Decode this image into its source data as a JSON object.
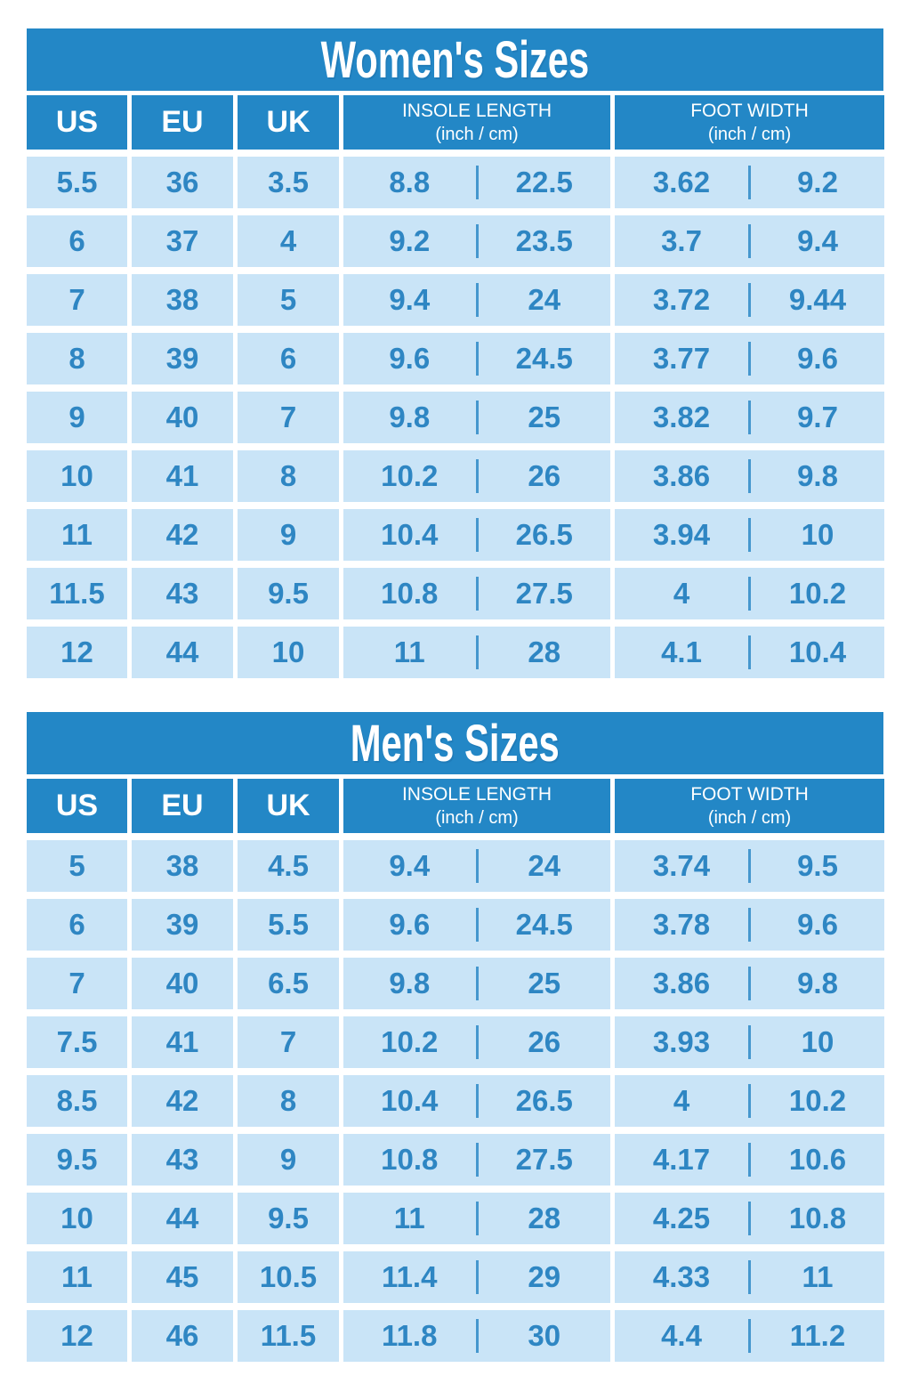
{
  "colors": {
    "banner_blue": "#2387c6",
    "cell_light_blue": "#c9e4f7",
    "cell_text_blue": "#2e86c3",
    "divider_blue": "#4597ce",
    "header_text": "#ffffff",
    "background": "#ffffff"
  },
  "tables": [
    {
      "title": "Women's Sizes",
      "headers": {
        "us": "US",
        "eu": "EU",
        "uk": "UK",
        "insole_title": "INSOLE LENGTH",
        "insole_sub": "(inch / cm)",
        "foot_title": "FOOT WIDTH",
        "foot_sub": "(inch / cm)"
      },
      "rows": [
        {
          "us": "5.5",
          "eu": "36",
          "uk": "3.5",
          "insole_in": "8.8",
          "insole_cm": "22.5",
          "foot_in": "3.62",
          "foot_cm": "9.2"
        },
        {
          "us": "6",
          "eu": "37",
          "uk": "4",
          "insole_in": "9.2",
          "insole_cm": "23.5",
          "foot_in": "3.7",
          "foot_cm": "9.4"
        },
        {
          "us": "7",
          "eu": "38",
          "uk": "5",
          "insole_in": "9.4",
          "insole_cm": "24",
          "foot_in": "3.72",
          "foot_cm": "9.44"
        },
        {
          "us": "8",
          "eu": "39",
          "uk": "6",
          "insole_in": "9.6",
          "insole_cm": "24.5",
          "foot_in": "3.77",
          "foot_cm": "9.6"
        },
        {
          "us": "9",
          "eu": "40",
          "uk": "7",
          "insole_in": "9.8",
          "insole_cm": "25",
          "foot_in": "3.82",
          "foot_cm": "9.7"
        },
        {
          "us": "10",
          "eu": "41",
          "uk": "8",
          "insole_in": "10.2",
          "insole_cm": "26",
          "foot_in": "3.86",
          "foot_cm": "9.8"
        },
        {
          "us": "11",
          "eu": "42",
          "uk": "9",
          "insole_in": "10.4",
          "insole_cm": "26.5",
          "foot_in": "3.94",
          "foot_cm": "10"
        },
        {
          "us": "11.5",
          "eu": "43",
          "uk": "9.5",
          "insole_in": "10.8",
          "insole_cm": "27.5",
          "foot_in": "4",
          "foot_cm": "10.2"
        },
        {
          "us": "12",
          "eu": "44",
          "uk": "10",
          "insole_in": "11",
          "insole_cm": "28",
          "foot_in": "4.1",
          "foot_cm": "10.4"
        }
      ]
    },
    {
      "title": "Men's Sizes",
      "headers": {
        "us": "US",
        "eu": "EU",
        "uk": "UK",
        "insole_title": "INSOLE LENGTH",
        "insole_sub": "(inch / cm)",
        "foot_title": "FOOT WIDTH",
        "foot_sub": "(inch / cm)"
      },
      "rows": [
        {
          "us": "5",
          "eu": "38",
          "uk": "4.5",
          "insole_in": "9.4",
          "insole_cm": "24",
          "foot_in": "3.74",
          "foot_cm": "9.5"
        },
        {
          "us": "6",
          "eu": "39",
          "uk": "5.5",
          "insole_in": "9.6",
          "insole_cm": "24.5",
          "foot_in": "3.78",
          "foot_cm": "9.6"
        },
        {
          "us": "7",
          "eu": "40",
          "uk": "6.5",
          "insole_in": "9.8",
          "insole_cm": "25",
          "foot_in": "3.86",
          "foot_cm": "9.8"
        },
        {
          "us": "7.5",
          "eu": "41",
          "uk": "7",
          "insole_in": "10.2",
          "insole_cm": "26",
          "foot_in": "3.93",
          "foot_cm": "10"
        },
        {
          "us": "8.5",
          "eu": "42",
          "uk": "8",
          "insole_in": "10.4",
          "insole_cm": "26.5",
          "foot_in": "4",
          "foot_cm": "10.2"
        },
        {
          "us": "9.5",
          "eu": "43",
          "uk": "9",
          "insole_in": "10.8",
          "insole_cm": "27.5",
          "foot_in": "4.17",
          "foot_cm": "10.6"
        },
        {
          "us": "10",
          "eu": "44",
          "uk": "9.5",
          "insole_in": "11",
          "insole_cm": "28",
          "foot_in": "4.25",
          "foot_cm": "10.8"
        },
        {
          "us": "11",
          "eu": "45",
          "uk": "10.5",
          "insole_in": "11.4",
          "insole_cm": "29",
          "foot_in": "4.33",
          "foot_cm": "11"
        },
        {
          "us": "12",
          "eu": "46",
          "uk": "11.5",
          "insole_in": "11.8",
          "insole_cm": "30",
          "foot_in": "4.4",
          "foot_cm": "11.2"
        }
      ]
    }
  ],
  "chart_data": [
    {
      "type": "table",
      "title": "Women's Sizes",
      "columns": [
        "US",
        "EU",
        "UK",
        "INSOLE LENGTH (inch)",
        "INSOLE LENGTH (cm)",
        "FOOT WIDTH (inch)",
        "FOOT WIDTH (cm)"
      ],
      "rows": [
        [
          "5.5",
          "36",
          "3.5",
          "8.8",
          "22.5",
          "3.62",
          "9.2"
        ],
        [
          "6",
          "37",
          "4",
          "9.2",
          "23.5",
          "3.7",
          "9.4"
        ],
        [
          "7",
          "38",
          "5",
          "9.4",
          "24",
          "3.72",
          "9.44"
        ],
        [
          "8",
          "39",
          "6",
          "9.6",
          "24.5",
          "3.77",
          "9.6"
        ],
        [
          "9",
          "40",
          "7",
          "9.8",
          "25",
          "3.82",
          "9.7"
        ],
        [
          "10",
          "41",
          "8",
          "10.2",
          "26",
          "3.86",
          "9.8"
        ],
        [
          "11",
          "42",
          "9",
          "10.4",
          "26.5",
          "3.94",
          "10"
        ],
        [
          "11.5",
          "43",
          "9.5",
          "10.8",
          "27.5",
          "4",
          "10.2"
        ],
        [
          "12",
          "44",
          "10",
          "11",
          "28",
          "4.1",
          "10.4"
        ]
      ]
    },
    {
      "type": "table",
      "title": "Men's Sizes",
      "columns": [
        "US",
        "EU",
        "UK",
        "INSOLE LENGTH (inch)",
        "INSOLE LENGTH (cm)",
        "FOOT WIDTH (inch)",
        "FOOT WIDTH (cm)"
      ],
      "rows": [
        [
          "5",
          "38",
          "4.5",
          "9.4",
          "24",
          "3.74",
          "9.5"
        ],
        [
          "6",
          "39",
          "5.5",
          "9.6",
          "24.5",
          "3.78",
          "9.6"
        ],
        [
          "7",
          "40",
          "6.5",
          "9.8",
          "25",
          "3.86",
          "9.8"
        ],
        [
          "7.5",
          "41",
          "7",
          "10.2",
          "26",
          "3.93",
          "10"
        ],
        [
          "8.5",
          "42",
          "8",
          "10.4",
          "26.5",
          "4",
          "10.2"
        ],
        [
          "9.5",
          "43",
          "9",
          "10.8",
          "27.5",
          "4.17",
          "10.6"
        ],
        [
          "10",
          "44",
          "9.5",
          "11",
          "28",
          "4.25",
          "10.8"
        ],
        [
          "11",
          "45",
          "10.5",
          "11.4",
          "29",
          "4.33",
          "11"
        ],
        [
          "12",
          "46",
          "11.5",
          "11.8",
          "30",
          "4.4",
          "11.2"
        ]
      ]
    }
  ]
}
